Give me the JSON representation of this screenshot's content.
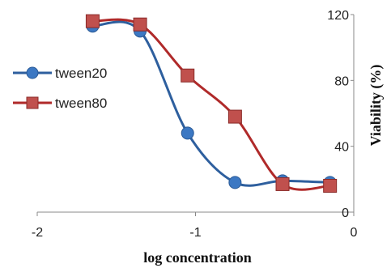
{
  "chart_data": {
    "type": "line",
    "title": "",
    "xlabel": "log concentration",
    "ylabel": "Viability (%)",
    "xlim": [
      -2,
      0
    ],
    "ylim": [
      0,
      120
    ],
    "x_ticks": [
      "-2",
      "-1",
      "0"
    ],
    "y_ticks": [
      "0",
      "40",
      "80",
      "120"
    ],
    "y_axis_side": "right",
    "grid": false,
    "legend_position": "left",
    "series": [
      {
        "name": "tween20",
        "color": "#2e5f9e",
        "marker": "circle",
        "smooth": true,
        "x": [
          -1.65,
          -1.35,
          -1.05,
          -0.75,
          -0.45,
          -0.15
        ],
        "y": [
          113,
          110,
          48,
          18,
          19,
          18
        ]
      },
      {
        "name": "tween80",
        "color": "#b02a2a",
        "marker": "square",
        "smooth": true,
        "x": [
          -1.65,
          -1.35,
          -1.05,
          -0.75,
          -0.45,
          -0.15
        ],
        "y": [
          116,
          114,
          83,
          58,
          17,
          16
        ]
      }
    ]
  }
}
